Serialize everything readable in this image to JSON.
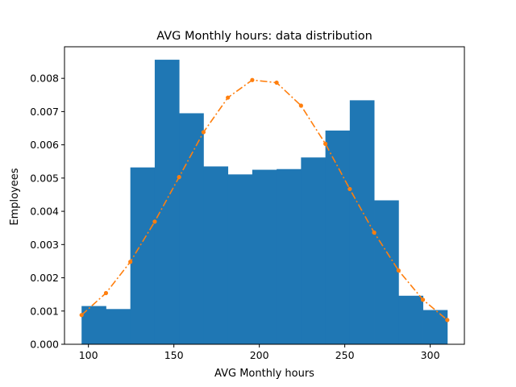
{
  "chart_data": {
    "type": "bar",
    "title": "AVG Monthly hours: data distribution",
    "xlabel": "AVG Monthly hours",
    "ylabel": "Employees",
    "xlim": [
      86,
      320
    ],
    "ylim": [
      0,
      0.00895
    ],
    "xticks": [
      100,
      150,
      200,
      250,
      300
    ],
    "xtick_labels": [
      "100",
      "150",
      "200",
      "250",
      "300"
    ],
    "yticks": [
      0,
      0.001,
      0.002,
      0.003,
      0.004,
      0.005,
      0.006,
      0.007,
      0.008
    ],
    "ytick_labels": [
      "0.000",
      "0.001",
      "0.002",
      "0.003",
      "0.004",
      "0.005",
      "0.006",
      "0.007",
      "0.008"
    ],
    "grid": false,
    "legend": "none",
    "histogram": {
      "bin_edges": [
        96,
        110.27,
        124.53,
        138.8,
        153.07,
        167.33,
        181.6,
        195.87,
        210.13,
        224.4,
        238.67,
        252.93,
        267.2,
        281.47,
        295.73,
        310
      ],
      "values": [
        0.00115,
        0.00106,
        0.00532,
        0.00856,
        0.00695,
        0.00535,
        0.00511,
        0.00525,
        0.00527,
        0.00562,
        0.00643,
        0.00734,
        0.00433,
        0.00146,
        0.00103
      ],
      "color": "#1f77b4"
    },
    "series": [
      {
        "x": [
          96,
          110.27,
          124.53,
          138.8,
          153.07,
          167.33,
          181.6,
          195.87,
          210.13,
          224.4,
          238.67,
          252.93,
          267.2,
          281.47,
          295.73,
          310
        ],
        "values": [
          0.00088,
          0.00154,
          0.00248,
          0.00369,
          0.00503,
          0.00638,
          0.00742,
          0.00795,
          0.00787,
          0.00718,
          0.00603,
          0.00467,
          0.00336,
          0.00222,
          0.00134,
          0.00073
        ],
        "color": "#ff7f0e",
        "line_style": "dash-dot",
        "marker": "dot"
      }
    ]
  }
}
